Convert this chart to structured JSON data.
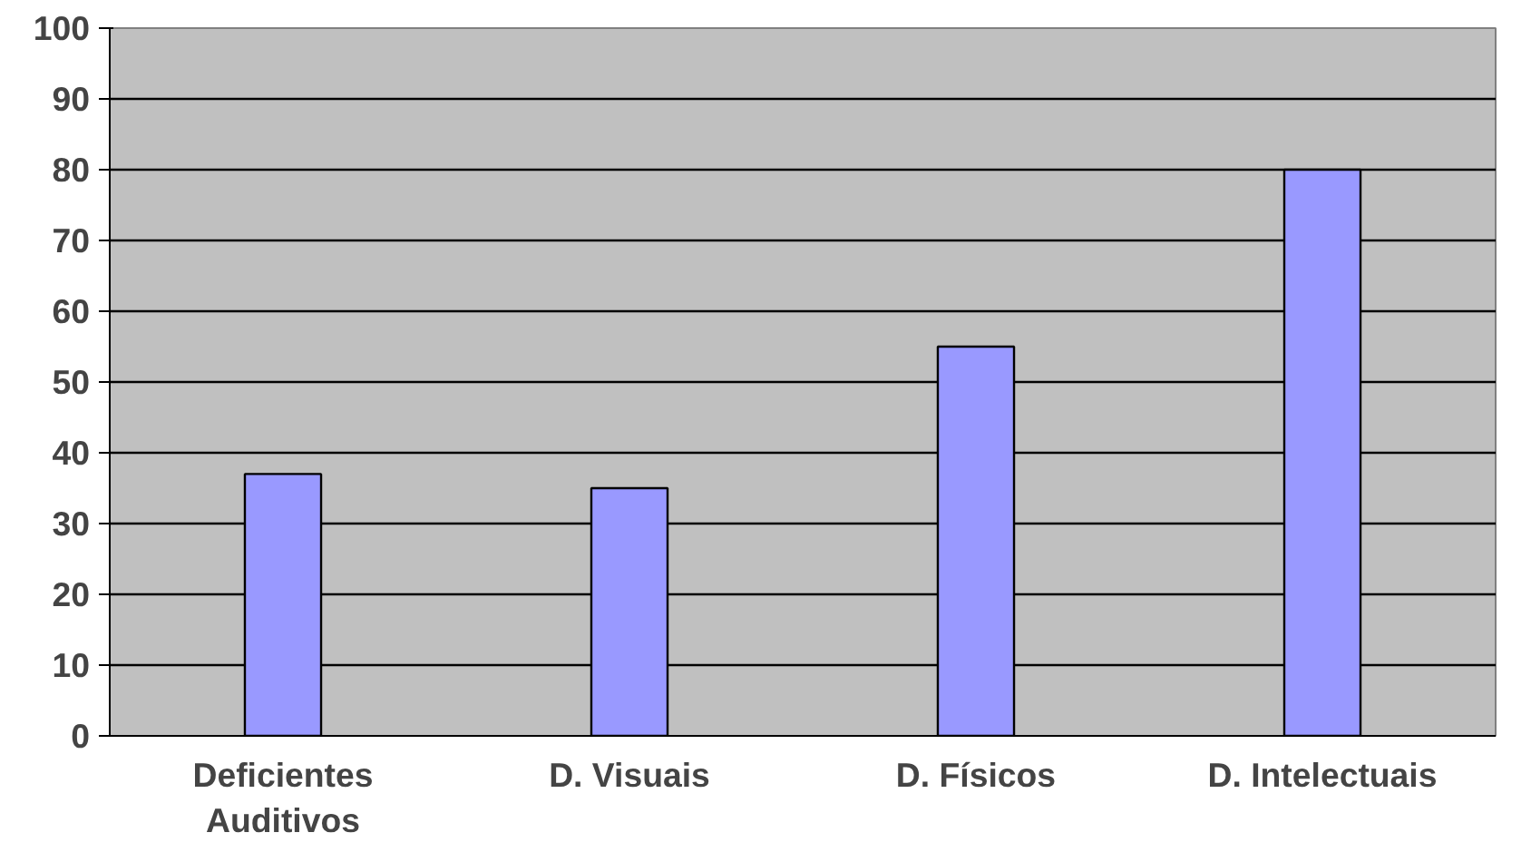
{
  "chart_data": {
    "type": "bar",
    "categories": [
      "Deficientes Auditivos",
      "D. Visuais",
      "D. Físicos",
      "D. Intelectuais"
    ],
    "values": [
      37,
      35,
      55,
      80
    ],
    "color": "#9999ff",
    "ylim": [
      0,
      100
    ],
    "yticks": [
      0,
      10,
      20,
      30,
      40,
      50,
      60,
      70,
      80,
      90,
      100
    ],
    "grid": "y"
  }
}
